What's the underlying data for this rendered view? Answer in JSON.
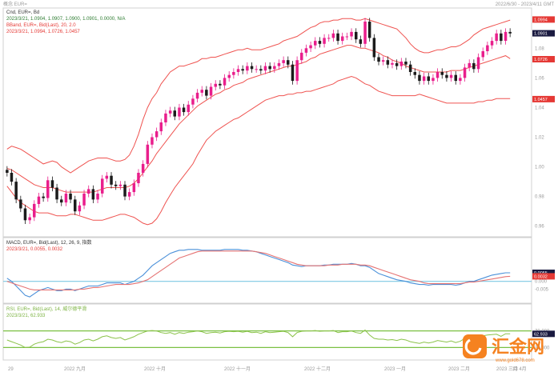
{
  "header": {
    "top_left": "概念 EUR=",
    "top_right": "2022/6/30 - 2023/4/11 GMT"
  },
  "chart_data": [
    {
      "type": "candlestick",
      "panel": "price",
      "title": "Cnd, EUR=, Bd",
      "legend": [
        {
          "text": "2023/3/21, 1.0904, 1.0907, 1.0900, 1.0901, 0.0000, N/A",
          "color": "#2e7d32"
        },
        {
          "text": "BBand, EUR=, Bid(Last), 20, 2.0",
          "color": "#e53935"
        },
        {
          "text": "2023/3/21, 1.0994, 1.0726, 1.0457",
          "color": "#e53935"
        }
      ],
      "ylim": [
        0.955,
        1.105
      ],
      "y_ticks": [
        "1.10",
        "1.08",
        "1.06",
        "1.04",
        "1.02",
        "1.00",
        "0.98",
        "0.96"
      ],
      "value_tags": [
        {
          "text": "1.0994",
          "value": 1.0994,
          "bg": "#e53935"
        },
        {
          "text": "1.0901",
          "value": 1.0901,
          "bg": "#1a1a40"
        },
        {
          "text": "1.0726",
          "value": 1.0726,
          "bg": "#e53935"
        },
        {
          "text": "1.0457",
          "value": 1.0457,
          "bg": "#e53935"
        }
      ],
      "close": [
        0.996,
        0.99,
        0.978,
        0.972,
        0.964,
        0.966,
        0.975,
        0.98,
        0.979,
        0.991,
        0.986,
        0.978,
        0.976,
        0.982,
        0.978,
        0.97,
        0.974,
        0.982,
        0.985,
        0.978,
        0.982,
        0.992,
        0.994,
        0.988,
        0.987,
        0.988,
        0.98,
        0.983,
        0.989,
        0.996,
        1.002,
        1.015,
        1.02,
        1.024,
        1.03,
        1.036,
        1.038,
        1.034,
        1.04,
        1.037,
        1.042,
        1.046,
        1.05,
        1.052,
        1.048,
        1.054,
        1.056,
        1.055,
        1.06,
        1.062,
        1.064,
        1.066,
        1.065,
        1.068,
        1.066,
        1.066,
        1.065,
        1.068,
        1.066,
        1.068,
        1.07,
        1.072,
        1.069,
        1.058,
        1.072,
        1.077,
        1.08,
        1.082,
        1.085,
        1.083,
        1.087,
        1.087,
        1.09,
        1.085,
        1.088,
        1.088,
        1.091,
        1.086,
        1.083,
        1.098,
        1.087,
        1.074,
        1.071,
        1.072,
        1.069,
        1.07,
        1.068,
        1.071,
        1.069,
        1.064,
        1.062,
        1.058,
        1.061,
        1.058,
        1.06,
        1.064,
        1.062,
        1.06,
        1.062,
        1.058,
        1.06,
        1.067,
        1.07,
        1.066,
        1.074,
        1.078,
        1.082,
        1.085,
        1.09,
        1.085,
        1.091,
        1.09
      ],
      "bb_upper": [
        1.012,
        1.014,
        1.013,
        1.012,
        1.01,
        1.008,
        1.006,
        1.004,
        1.002,
        1.003,
        1.004,
        1.003,
        1.0,
        0.998,
        0.996,
        0.998,
        1.0,
        1.002,
        1.004,
        1.005,
        1.006,
        1.006,
        1.006,
        1.005,
        1.004,
        1.004,
        1.005,
        1.008,
        1.014,
        1.022,
        1.032,
        1.04,
        1.046,
        1.05,
        1.056,
        1.06,
        1.064,
        1.066,
        1.068,
        1.068,
        1.069,
        1.07,
        1.071,
        1.073,
        1.073,
        1.074,
        1.074,
        1.075,
        1.076,
        1.077,
        1.078,
        1.079,
        1.079,
        1.08,
        1.079,
        1.079,
        1.079,
        1.08,
        1.081,
        1.082,
        1.083,
        1.085,
        1.086,
        1.087,
        1.088,
        1.09,
        1.092,
        1.094,
        1.095,
        1.097,
        1.098,
        1.098,
        1.099,
        1.099,
        1.1,
        1.1,
        1.1,
        1.099,
        1.099,
        1.1,
        1.099,
        1.098,
        1.097,
        1.096,
        1.095,
        1.094,
        1.093,
        1.09,
        1.087,
        1.083,
        1.08,
        1.078,
        1.077,
        1.077,
        1.078,
        1.079,
        1.079,
        1.08,
        1.081,
        1.081,
        1.082,
        1.084,
        1.086,
        1.089,
        1.091,
        1.093,
        1.094,
        1.095,
        1.096,
        1.097,
        1.098,
        1.099
      ],
      "bb_middle": [
        0.999,
        0.998,
        0.996,
        0.994,
        0.992,
        0.99,
        0.988,
        0.987,
        0.986,
        0.986,
        0.986,
        0.985,
        0.984,
        0.983,
        0.983,
        0.983,
        0.983,
        0.983,
        0.983,
        0.983,
        0.984,
        0.985,
        0.986,
        0.986,
        0.986,
        0.986,
        0.986,
        0.987,
        0.989,
        0.992,
        0.996,
        1.0,
        1.004,
        1.009,
        1.013,
        1.017,
        1.021,
        1.025,
        1.029,
        1.032,
        1.035,
        1.038,
        1.041,
        1.043,
        1.045,
        1.047,
        1.049,
        1.05,
        1.052,
        1.053,
        1.055,
        1.056,
        1.057,
        1.059,
        1.06,
        1.061,
        1.062,
        1.063,
        1.064,
        1.065,
        1.066,
        1.067,
        1.068,
        1.068,
        1.069,
        1.07,
        1.071,
        1.073,
        1.074,
        1.076,
        1.077,
        1.078,
        1.079,
        1.08,
        1.081,
        1.082,
        1.082,
        1.081,
        1.08,
        1.08,
        1.079,
        1.078,
        1.077,
        1.075,
        1.074,
        1.072,
        1.071,
        1.07,
        1.068,
        1.067,
        1.066,
        1.065,
        1.064,
        1.064,
        1.064,
        1.064,
        1.064,
        1.064,
        1.065,
        1.065,
        1.065,
        1.066,
        1.067,
        1.068,
        1.069,
        1.07,
        1.071,
        1.072,
        1.073,
        1.074,
        1.075,
        1.073
      ],
      "bb_lower": [
        0.987,
        0.983,
        0.979,
        0.976,
        0.974,
        0.972,
        0.97,
        0.969,
        0.969,
        0.969,
        0.968,
        0.967,
        0.967,
        0.967,
        0.968,
        0.968,
        0.967,
        0.966,
        0.965,
        0.964,
        0.964,
        0.964,
        0.965,
        0.966,
        0.967,
        0.968,
        0.968,
        0.967,
        0.966,
        0.964,
        0.962,
        0.961,
        0.962,
        0.965,
        0.97,
        0.976,
        0.981,
        0.986,
        0.99,
        0.994,
        0.998,
        1.002,
        1.008,
        1.013,
        1.018,
        1.021,
        1.024,
        1.026,
        1.028,
        1.03,
        1.032,
        1.033,
        1.035,
        1.037,
        1.039,
        1.041,
        1.043,
        1.045,
        1.046,
        1.047,
        1.048,
        1.048,
        1.049,
        1.049,
        1.05,
        1.05,
        1.051,
        1.051,
        1.052,
        1.053,
        1.054,
        1.055,
        1.056,
        1.058,
        1.059,
        1.06,
        1.061,
        1.06,
        1.058,
        1.056,
        1.055,
        1.053,
        1.051,
        1.05,
        1.049,
        1.048,
        1.048,
        1.048,
        1.048,
        1.048,
        1.048,
        1.049,
        1.048,
        1.047,
        1.046,
        1.045,
        1.044,
        1.043,
        1.043,
        1.043,
        1.043,
        1.043,
        1.043,
        1.043,
        1.044,
        1.044,
        1.045,
        1.045,
        1.046,
        1.046,
        1.046,
        1.046
      ]
    },
    {
      "type": "line",
      "panel": "macd",
      "title": "MACD, EUR=, Bid(Last), 12, 26, 9, 指数",
      "legend": [
        {
          "text": "2023/3/21, 0.0055, 0.0032",
          "color": "#e53935"
        }
      ],
      "ylim": [
        -0.012,
        0.024
      ],
      "y_ticks": [
        "0.000",
        "-0.005"
      ],
      "value_tags": [
        {
          "text": "0.0055",
          "value": 0.0055,
          "bg": "#1a1a40"
        },
        {
          "text": "0.0032",
          "value": 0.0032,
          "bg": "#e53935"
        }
      ],
      "reference_line": 0.0,
      "series": [
        {
          "color": "#4a90d9",
          "values": [
            0.002,
            0.0,
            -0.003,
            -0.006,
            -0.009,
            -0.01,
            -0.008,
            -0.006,
            -0.005,
            -0.004,
            -0.005,
            -0.006,
            -0.006,
            -0.005,
            -0.005,
            -0.006,
            -0.005,
            -0.004,
            -0.003,
            -0.003,
            -0.003,
            -0.002,
            -0.001,
            -0.001,
            -0.001,
            -0.001,
            -0.002,
            -0.001,
            0.0,
            0.002,
            0.004,
            0.007,
            0.01,
            0.012,
            0.014,
            0.016,
            0.018,
            0.019,
            0.02,
            0.02,
            0.0205,
            0.0205,
            0.0205,
            0.02,
            0.02,
            0.02,
            0.02,
            0.02,
            0.0205,
            0.0205,
            0.0205,
            0.0205,
            0.02,
            0.02,
            0.0195,
            0.019,
            0.018,
            0.017,
            0.016,
            0.015,
            0.014,
            0.013,
            0.012,
            0.0105,
            0.01,
            0.0095,
            0.01,
            0.01,
            0.01,
            0.01,
            0.0105,
            0.0105,
            0.011,
            0.011,
            0.011,
            0.011,
            0.0115,
            0.011,
            0.01,
            0.01,
            0.009,
            0.007,
            0.005,
            0.004,
            0.003,
            0.002,
            0.001,
            0.0005,
            0.0,
            -0.001,
            -0.0015,
            -0.002,
            -0.002,
            -0.0025,
            -0.002,
            -0.002,
            -0.002,
            -0.002,
            -0.002,
            -0.0025,
            -0.002,
            -0.001,
            0.0,
            0.0,
            0.001,
            0.002,
            0.003,
            0.004,
            0.0045,
            0.005,
            0.0055,
            0.0055
          ]
        },
        {
          "color": "#e57373",
          "values": [
            0.0,
            -0.001,
            -0.002,
            -0.003,
            -0.004,
            -0.005,
            -0.0055,
            -0.0055,
            -0.0055,
            -0.0055,
            -0.0055,
            -0.0055,
            -0.0055,
            -0.0055,
            -0.0055,
            -0.0055,
            -0.005,
            -0.005,
            -0.0045,
            -0.004,
            -0.004,
            -0.0035,
            -0.003,
            -0.0025,
            -0.002,
            -0.002,
            -0.002,
            -0.002,
            -0.0015,
            -0.001,
            0.0,
            0.001,
            0.003,
            0.005,
            0.007,
            0.009,
            0.011,
            0.013,
            0.015,
            0.016,
            0.017,
            0.018,
            0.019,
            0.0195,
            0.0195,
            0.0195,
            0.0195,
            0.0195,
            0.0195,
            0.0195,
            0.0195,
            0.0195,
            0.0195,
            0.0195,
            0.0195,
            0.019,
            0.0185,
            0.018,
            0.017,
            0.016,
            0.015,
            0.014,
            0.013,
            0.012,
            0.011,
            0.0105,
            0.01,
            0.01,
            0.01,
            0.01,
            0.01,
            0.0105,
            0.0105,
            0.0105,
            0.011,
            0.011,
            0.011,
            0.011,
            0.0105,
            0.0105,
            0.01,
            0.009,
            0.008,
            0.007,
            0.006,
            0.005,
            0.004,
            0.003,
            0.002,
            0.001,
            0.0005,
            0.0,
            -0.001,
            -0.0015,
            -0.0015,
            -0.0015,
            -0.0015,
            -0.0015,
            -0.0015,
            -0.0015,
            -0.0015,
            -0.001,
            -0.0005,
            -0.0005,
            0.0,
            0.0005,
            0.001,
            0.0015,
            0.002,
            0.0025,
            0.003,
            0.0032
          ]
        }
      ]
    },
    {
      "type": "line",
      "panel": "rsi",
      "title": "RSI, EUR=, Bid(Last), 14, 威尔德平滑",
      "legend": [
        {
          "text": "2023/3/21, 62.933",
          "color": "#7cb342"
        }
      ],
      "ylim": [
        0,
        100
      ],
      "y_ticks": [
        "70.000",
        "30.000"
      ],
      "value_tags": [
        {
          "text": "62.933",
          "value": 62.933,
          "bg": "#1a1a40"
        }
      ],
      "bands": [
        70,
        30
      ],
      "series": [
        {
          "color": "#8bc34a",
          "values": [
            48,
            44,
            40,
            36,
            30,
            31,
            38,
            42,
            44,
            50,
            48,
            44,
            42,
            46,
            44,
            38,
            42,
            48,
            50,
            46,
            50,
            56,
            58,
            54,
            52,
            54,
            48,
            52,
            56,
            62,
            66,
            70,
            71,
            70,
            66,
            64,
            66,
            62,
            66,
            64,
            67,
            68,
            70,
            68,
            64,
            66,
            67,
            65,
            68,
            69,
            68,
            69,
            67,
            69,
            66,
            67,
            64,
            68,
            66,
            67,
            68,
            69,
            66,
            56,
            66,
            69,
            70,
            70,
            71,
            69,
            70,
            70,
            71,
            66,
            68,
            68,
            70,
            66,
            64,
            72,
            60,
            52,
            50,
            50,
            48,
            49,
            47,
            50,
            48,
            44,
            42,
            40,
            43,
            41,
            43,
            47,
            45,
            43,
            46,
            42,
            45,
            52,
            55,
            50,
            56,
            58,
            60,
            61,
            62,
            57,
            63,
            62.9
          ]
        }
      ]
    }
  ],
  "x_axis": {
    "labels": [
      "29",
      "2022 九月",
      "2022 十月",
      "2022 十一月",
      "2022 十二月",
      "2023 一月",
      "2023 二月",
      "2023 三月",
      "13 4月"
    ]
  },
  "watermark": {
    "brand": "汇金网",
    "url": "www.gold678.com"
  }
}
